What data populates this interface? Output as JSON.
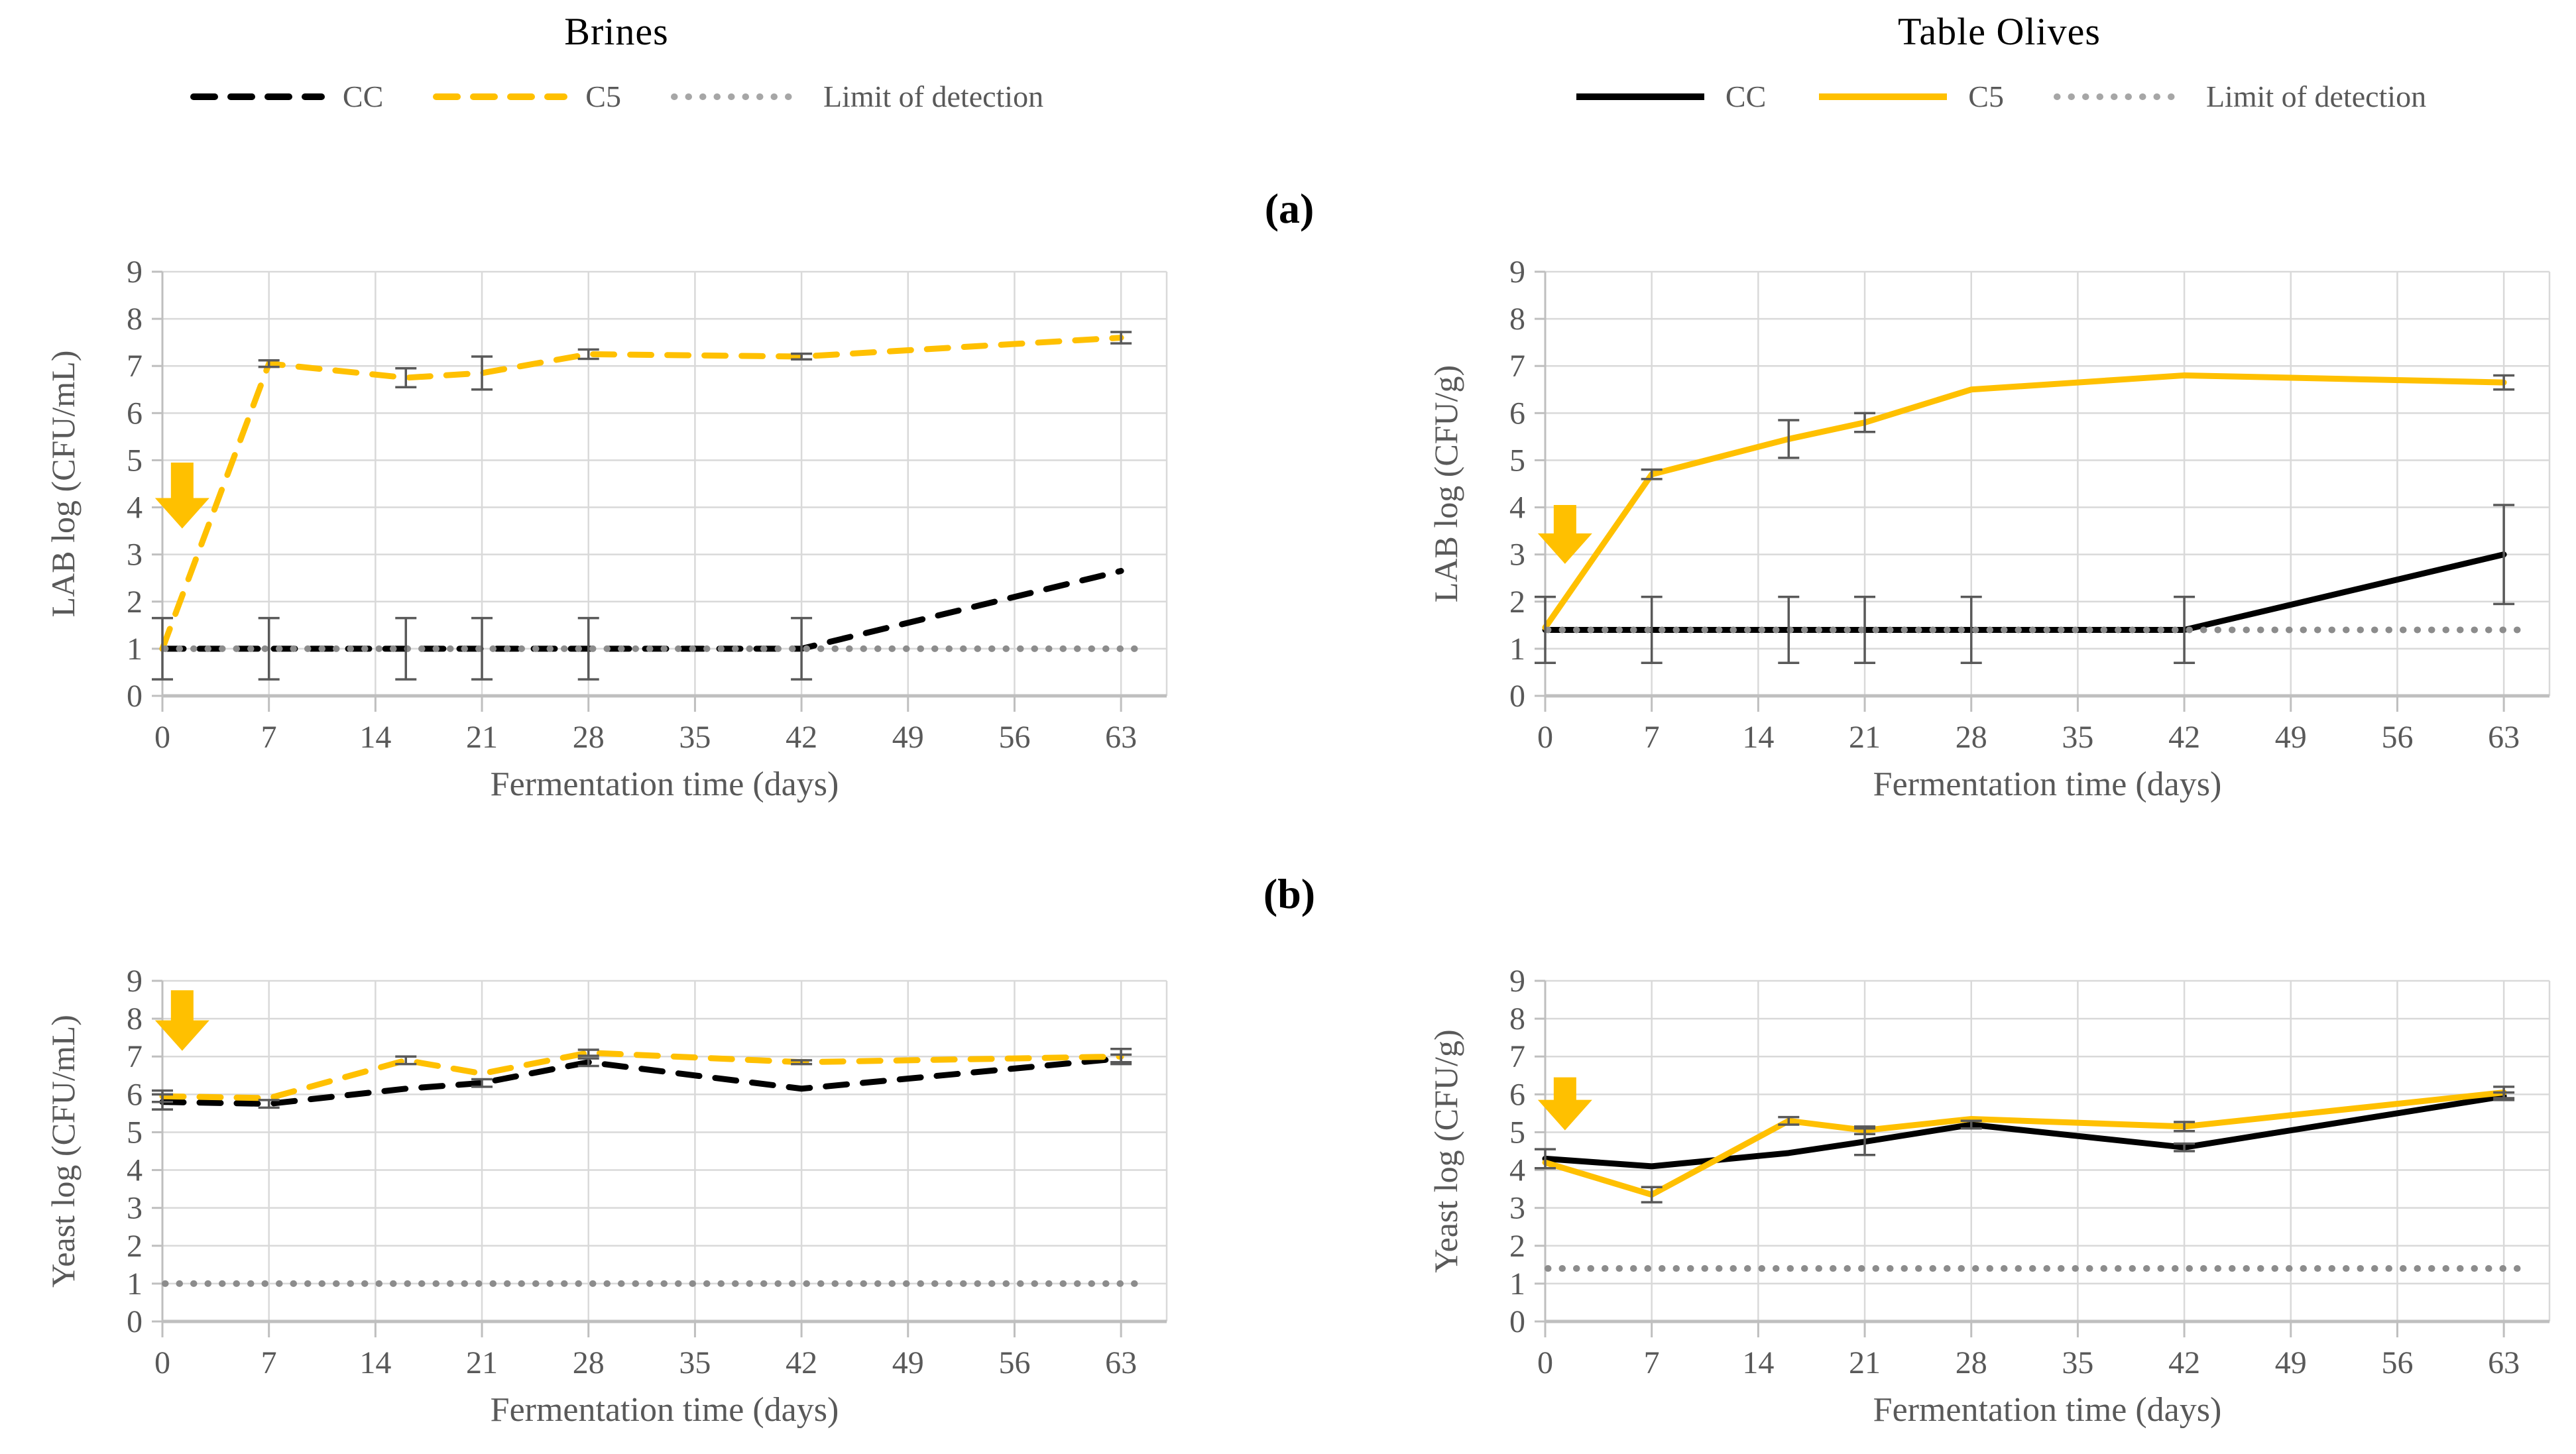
{
  "figure": {
    "panel_labels": {
      "a": "(a)",
      "b": "(b)"
    },
    "columns": [
      {
        "title": "Brines",
        "legend": [
          {
            "label": "CC",
            "style": "dashed",
            "color": "#000000"
          },
          {
            "label": "C5",
            "style": "dashed",
            "color": "#FFC000"
          },
          {
            "label": "Limit of detection",
            "style": "dotted",
            "color": "#A6A6A6"
          }
        ]
      },
      {
        "title": "Table Olives",
        "legend": [
          {
            "label": "CC",
            "style": "solid",
            "color": "#000000"
          },
          {
            "label": "C5",
            "style": "solid",
            "color": "#FFC000"
          },
          {
            "label": "Limit of detection",
            "style": "dotted",
            "color": "#A6A6A6"
          }
        ]
      }
    ]
  },
  "colors": {
    "gold": "#FFC000",
    "black": "#000000",
    "lod_dots": "#8C8C8C",
    "gridline": "#D9D9D9",
    "axis": "#BFBFBF",
    "text": "#595959",
    "error_bar": "#595959"
  },
  "chart_data": [
    {
      "type": "line",
      "name": "brines-lab",
      "ylabel": "LAB log (CFU/mL)",
      "xlabel": "Fermentation time (days)",
      "ylim": [
        0,
        9
      ],
      "xlim": [
        0,
        66
      ],
      "xticks": [
        0,
        7,
        14,
        21,
        28,
        35,
        42,
        49,
        56,
        63
      ],
      "yticks": [
        0,
        1,
        2,
        3,
        4,
        5,
        6,
        7,
        8,
        9
      ],
      "grid": true,
      "legend_position": "top",
      "x": [
        0,
        7,
        16,
        21,
        28,
        42,
        63
      ],
      "limit_of_detection": 1.0,
      "series": [
        {
          "name": "CC",
          "style": "dashed",
          "color": "#000000",
          "values": [
            1.0,
            1.0,
            1.0,
            1.0,
            1.0,
            1.0,
            2.65
          ],
          "errors": [
            0.65,
            0.65,
            0.65,
            0.65,
            0.65,
            0.65,
            null
          ]
        },
        {
          "name": "C5",
          "style": "dashed",
          "color": "#FFC000",
          "values": [
            1.0,
            7.05,
            6.75,
            6.85,
            7.25,
            7.2,
            7.6
          ],
          "errors": [
            null,
            0.07,
            0.2,
            0.35,
            0.1,
            0.06,
            0.12
          ]
        }
      ],
      "inoculation_arrow": {
        "x": 1.3,
        "y_top": 4.95,
        "y_tip": 3.55
      }
    },
    {
      "type": "line",
      "name": "olives-lab",
      "ylabel": "LAB log (CFU/g)",
      "xlabel": "Fermentation time (days)",
      "ylim": [
        0,
        9
      ],
      "xlim": [
        0,
        66
      ],
      "xticks": [
        0,
        7,
        14,
        21,
        28,
        35,
        42,
        49,
        56,
        63
      ],
      "yticks": [
        0,
        1,
        2,
        3,
        4,
        5,
        6,
        7,
        8,
        9
      ],
      "grid": true,
      "legend_position": "top",
      "x": [
        0,
        7,
        16,
        21,
        28,
        42,
        63
      ],
      "limit_of_detection": 1.4,
      "series": [
        {
          "name": "CC",
          "style": "solid",
          "color": "#000000",
          "values": [
            1.4,
            1.4,
            1.4,
            1.4,
            1.4,
            1.4,
            3.0
          ],
          "errors": [
            0.7,
            0.7,
            0.7,
            0.7,
            0.7,
            0.7,
            1.05
          ]
        },
        {
          "name": "C5",
          "style": "solid",
          "color": "#FFC000",
          "values": [
            1.45,
            4.7,
            5.45,
            5.8,
            6.5,
            6.8,
            6.65
          ],
          "errors": [
            null,
            0.1,
            0.4,
            0.2,
            null,
            null,
            0.15
          ]
        }
      ],
      "inoculation_arrow": {
        "x": 1.3,
        "y_top": 4.05,
        "y_tip": 2.8
      }
    },
    {
      "type": "line",
      "name": "brines-yeast",
      "ylabel": "Yeast log (CFU/mL)",
      "xlabel": "Fermentation time (days)",
      "ylim": [
        0,
        9
      ],
      "xlim": [
        0,
        66
      ],
      "xticks": [
        0,
        7,
        14,
        21,
        28,
        35,
        42,
        49,
        56,
        63
      ],
      "yticks": [
        0,
        1,
        2,
        3,
        4,
        5,
        6,
        7,
        8,
        9
      ],
      "grid": true,
      "legend_position": "top",
      "x": [
        0,
        7,
        16,
        21,
        28,
        42,
        63
      ],
      "limit_of_detection": 1.0,
      "series": [
        {
          "name": "CC",
          "style": "dashed",
          "color": "#000000",
          "values": [
            5.8,
            5.75,
            6.15,
            6.3,
            6.85,
            6.15,
            6.95
          ],
          "errors": [
            0.2,
            0.1,
            null,
            0.1,
            0.1,
            null,
            0.1
          ]
        },
        {
          "name": "C5",
          "style": "dashed",
          "color": "#FFC000",
          "values": [
            5.95,
            5.9,
            6.9,
            6.55,
            7.1,
            6.85,
            7.0
          ],
          "errors": [
            0.15,
            null,
            0.1,
            null,
            0.08,
            0.05,
            0.2
          ]
        }
      ],
      "inoculation_arrow": {
        "x": 1.3,
        "y_top": 8.75,
        "y_tip": 7.15
      }
    },
    {
      "type": "line",
      "name": "olives-yeast",
      "ylabel": "Yeast log (CFU/g)",
      "xlabel": "Fermentation time (days)",
      "ylim": [
        0,
        9
      ],
      "xlim": [
        0,
        66
      ],
      "xticks": [
        0,
        7,
        14,
        21,
        28,
        35,
        42,
        49,
        56,
        63
      ],
      "yticks": [
        0,
        1,
        2,
        3,
        4,
        5,
        6,
        7,
        8,
        9
      ],
      "grid": true,
      "legend_position": "top",
      "x": [
        0,
        7,
        16,
        21,
        28,
        42,
        63
      ],
      "limit_of_detection": 1.4,
      "series": [
        {
          "name": "CC",
          "style": "solid",
          "color": "#000000",
          "values": [
            4.3,
            4.1,
            4.45,
            4.75,
            5.2,
            4.6,
            5.95
          ],
          "errors": [
            0.25,
            null,
            null,
            0.35,
            0.1,
            0.1,
            0.1
          ]
        },
        {
          "name": "C5",
          "style": "solid",
          "color": "#FFC000",
          "values": [
            4.2,
            3.35,
            5.3,
            5.05,
            5.35,
            5.15,
            6.05
          ],
          "errors": [
            null,
            0.2,
            0.1,
            0.1,
            null,
            0.12,
            0.15
          ]
        }
      ],
      "inoculation_arrow": {
        "x": 1.3,
        "y_top": 6.45,
        "y_tip": 5.05
      }
    }
  ]
}
